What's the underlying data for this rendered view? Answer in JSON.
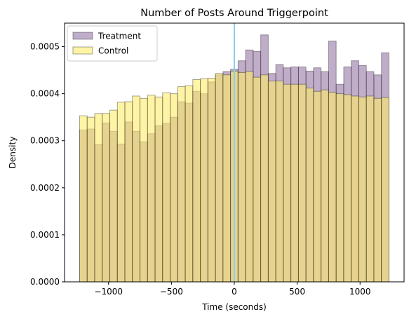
{
  "chart_data": {
    "type": "bar",
    "title": "Number of Posts Around Triggerpoint",
    "xlabel": "Time (seconds)",
    "ylabel": "Density",
    "xlim": [
      -1350,
      1350
    ],
    "ylim": [
      0,
      0.00055
    ],
    "xticks": [
      -1000,
      -500,
      0,
      500,
      1000
    ],
    "xtick_labels": [
      "−1000",
      "−500",
      "0",
      "500",
      "1000"
    ],
    "yticks": [
      0,
      0.0001,
      0.0002,
      0.0003,
      0.0004,
      0.0005
    ],
    "ytick_labels": [
      "0.0000",
      "0.0001",
      "0.0002",
      "0.0003",
      "0.0004",
      "0.0005"
    ],
    "bin_start": -1230,
    "bin_width": 60,
    "vline_x": 0,
    "vline_color": "#87ceeb",
    "legend_position": "upper-left",
    "series": [
      {
        "name": "Treatment",
        "fill": "#8c6a9d",
        "alpha": 0.55,
        "values": [
          0.000323,
          0.000325,
          0.000292,
          0.000338,
          0.00032,
          0.000293,
          0.00034,
          0.00032,
          0.000298,
          0.000315,
          0.000332,
          0.000337,
          0.00035,
          0.000383,
          0.00038,
          0.000405,
          0.0004,
          0.000425,
          0.00044,
          0.000447,
          0.000452,
          0.00047,
          0.000493,
          0.00049,
          0.000525,
          0.000443,
          0.000462,
          0.000455,
          0.000457,
          0.000457,
          0.000448,
          0.000455,
          0.000447,
          0.000512,
          0.00042,
          0.000457,
          0.00047,
          0.00046,
          0.000447,
          0.00044,
          0.000487
        ]
      },
      {
        "name": "Control",
        "fill": "#ffec6b",
        "alpha": 0.6,
        "values": [
          0.000353,
          0.00035,
          0.000358,
          0.000358,
          0.000365,
          0.000382,
          0.000383,
          0.000395,
          0.00039,
          0.000397,
          0.000393,
          0.000402,
          0.0004,
          0.000415,
          0.000417,
          0.00043,
          0.000432,
          0.000433,
          0.000443,
          0.00044,
          0.000448,
          0.000445,
          0.000447,
          0.000435,
          0.00044,
          0.000427,
          0.000427,
          0.00042,
          0.00042,
          0.00042,
          0.000412,
          0.000405,
          0.000408,
          0.000403,
          0.0004,
          0.000398,
          0.000395,
          0.000393,
          0.000395,
          0.00039,
          0.000392
        ]
      }
    ]
  }
}
